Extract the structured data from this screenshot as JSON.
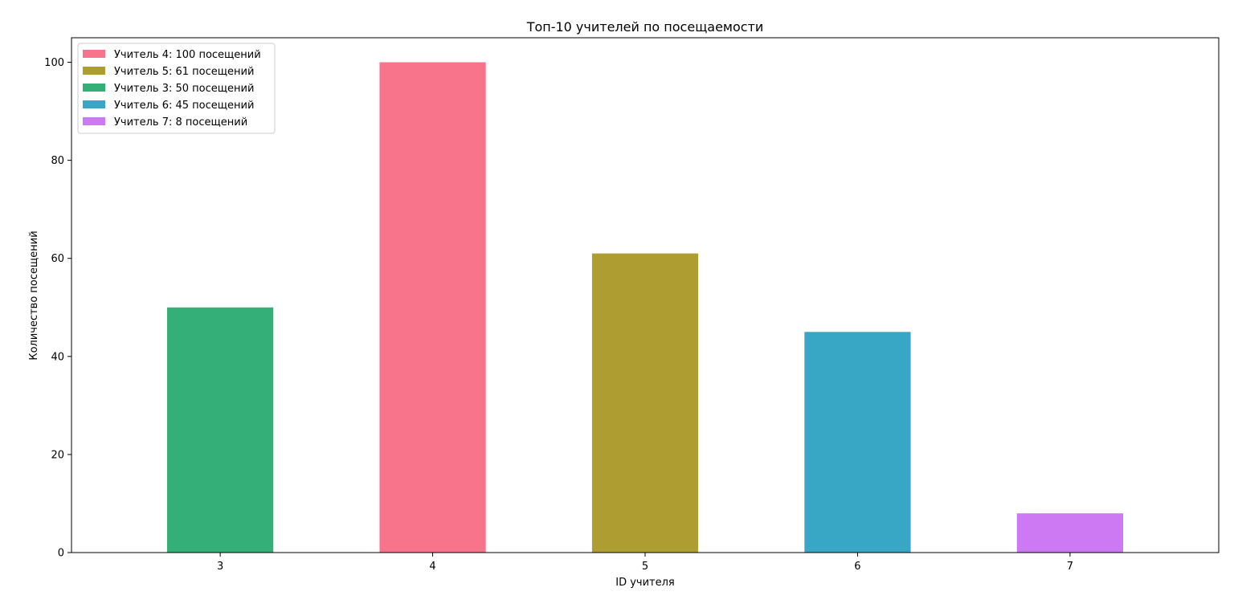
{
  "chart_data": {
    "type": "bar",
    "title": "Топ-10 учителей по посещаемости",
    "xlabel": "ID учителя",
    "ylabel": "Количество посещений",
    "categories": [
      "3",
      "4",
      "5",
      "6",
      "7"
    ],
    "values": [
      50,
      100,
      61,
      45,
      8
    ],
    "colors": [
      "#34af78",
      "#f7748a",
      "#ae9d31",
      "#38a7c5",
      "#cc7af4"
    ],
    "ylim": [
      0,
      105
    ],
    "yticks": [
      0,
      20,
      40,
      60,
      80,
      100
    ],
    "grid": false,
    "legend": {
      "placement": "top-left",
      "entries": [
        {
          "label": "Учитель 4: 100 посещений",
          "color": "#f7748a"
        },
        {
          "label": "Учитель 5: 61 посещений",
          "color": "#ae9d31"
        },
        {
          "label": "Учитель 3: 50 посещений",
          "color": "#34af78"
        },
        {
          "label": "Учитель 6: 45 посещений",
          "color": "#38a7c5"
        },
        {
          "label": "Учитель 7: 8 посещений",
          "color": "#cc7af4"
        }
      ]
    }
  }
}
